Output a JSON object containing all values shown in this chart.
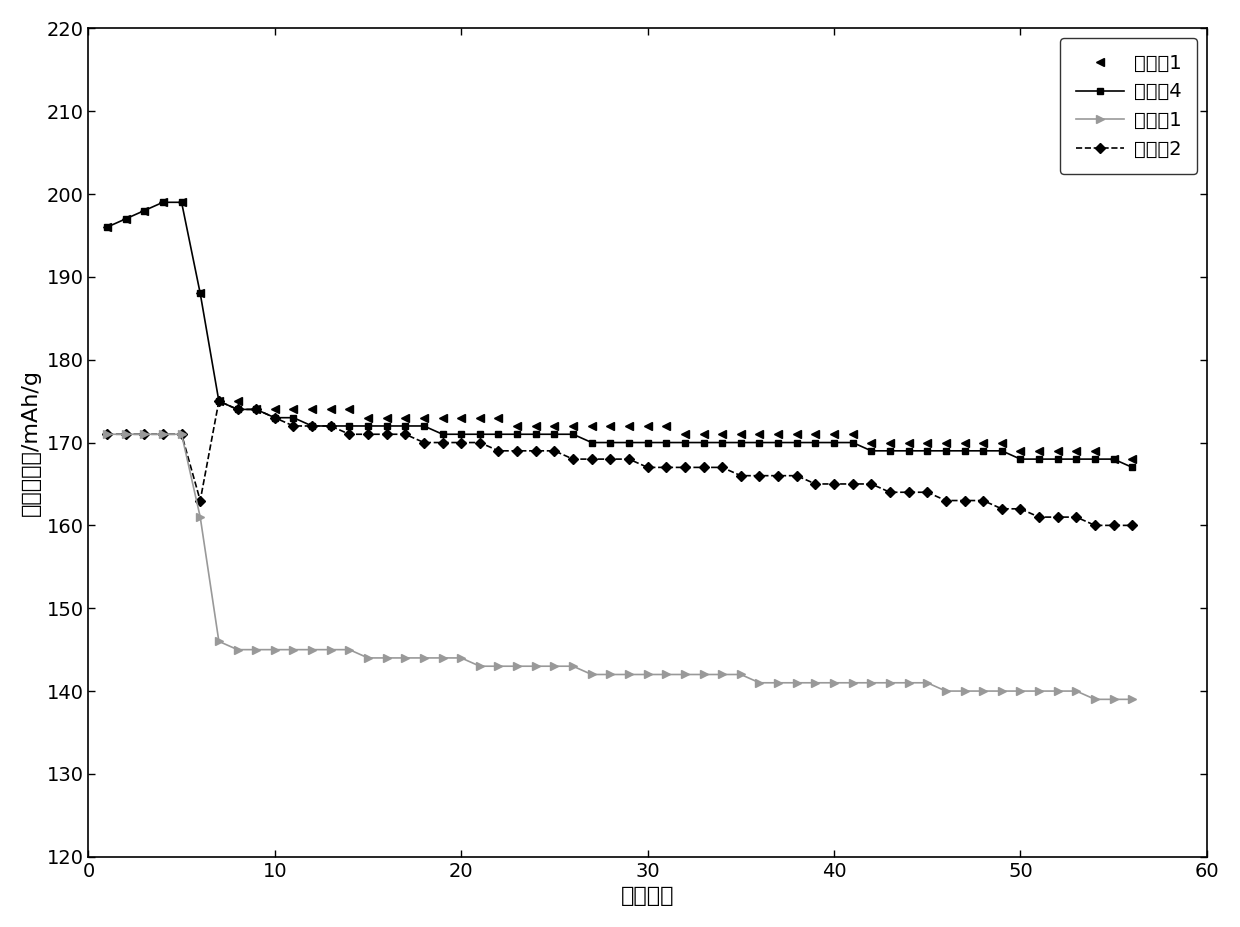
{
  "xlabel": "循环次数",
  "ylabel": "放电比容量/mAh/g",
  "xlim": [
    0,
    60
  ],
  "ylim": [
    120,
    220
  ],
  "yticks": [
    120,
    130,
    140,
    150,
    160,
    170,
    180,
    190,
    200,
    210,
    220
  ],
  "xticks": [
    0,
    10,
    20,
    30,
    40,
    50,
    60
  ],
  "series": {
    "shishi1": {
      "label": "实施例1",
      "color": "#000000",
      "linestyle": "none",
      "marker": "<",
      "markersize": 6,
      "x": [
        1,
        2,
        3,
        4,
        5,
        6,
        7,
        8,
        9,
        10,
        11,
        12,
        13,
        14,
        15,
        16,
        17,
        18,
        19,
        20,
        21,
        22,
        23,
        24,
        25,
        26,
        27,
        28,
        29,
        30,
        31,
        32,
        33,
        34,
        35,
        36,
        37,
        38,
        39,
        40,
        41,
        42,
        43,
        44,
        45,
        46,
        47,
        48,
        49,
        50,
        51,
        52,
        53,
        54,
        55,
        56
      ],
      "y": [
        196,
        197,
        198,
        199,
        199,
        188,
        175,
        175,
        174,
        174,
        174,
        174,
        174,
        174,
        173,
        173,
        173,
        173,
        173,
        173,
        173,
        173,
        172,
        172,
        172,
        172,
        172,
        172,
        172,
        172,
        172,
        171,
        171,
        171,
        171,
        171,
        171,
        171,
        171,
        171,
        171,
        170,
        170,
        170,
        170,
        170,
        170,
        170,
        170,
        169,
        169,
        169,
        169,
        169,
        168,
        168
      ]
    },
    "shishi4": {
      "label": "实施例4",
      "color": "#000000",
      "linestyle": "-",
      "marker": "s",
      "markersize": 5,
      "x": [
        1,
        2,
        3,
        4,
        5,
        6,
        7,
        8,
        9,
        10,
        11,
        12,
        13,
        14,
        15,
        16,
        17,
        18,
        19,
        20,
        21,
        22,
        23,
        24,
        25,
        26,
        27,
        28,
        29,
        30,
        31,
        32,
        33,
        34,
        35,
        36,
        37,
        38,
        39,
        40,
        41,
        42,
        43,
        44,
        45,
        46,
        47,
        48,
        49,
        50,
        51,
        52,
        53,
        54,
        55,
        56
      ],
      "y": [
        196,
        197,
        198,
        199,
        199,
        188,
        175,
        174,
        174,
        173,
        173,
        172,
        172,
        172,
        172,
        172,
        172,
        172,
        171,
        171,
        171,
        171,
        171,
        171,
        171,
        171,
        170,
        170,
        170,
        170,
        170,
        170,
        170,
        170,
        170,
        170,
        170,
        170,
        170,
        170,
        170,
        169,
        169,
        169,
        169,
        169,
        169,
        169,
        169,
        168,
        168,
        168,
        168,
        168,
        168,
        167
      ]
    },
    "duibi1": {
      "label": "对比例1",
      "color": "#999999",
      "linestyle": "-",
      "marker": ">",
      "markersize": 6,
      "x": [
        1,
        2,
        3,
        4,
        5,
        6,
        7,
        8,
        9,
        10,
        11,
        12,
        13,
        14,
        15,
        16,
        17,
        18,
        19,
        20,
        21,
        22,
        23,
        24,
        25,
        26,
        27,
        28,
        29,
        30,
        31,
        32,
        33,
        34,
        35,
        36,
        37,
        38,
        39,
        40,
        41,
        42,
        43,
        44,
        45,
        46,
        47,
        48,
        49,
        50,
        51,
        52,
        53,
        54,
        55,
        56
      ],
      "y": [
        171,
        171,
        171,
        171,
        171,
        161,
        146,
        145,
        145,
        145,
        145,
        145,
        145,
        145,
        144,
        144,
        144,
        144,
        144,
        144,
        143,
        143,
        143,
        143,
        143,
        143,
        142,
        142,
        142,
        142,
        142,
        142,
        142,
        142,
        142,
        141,
        141,
        141,
        141,
        141,
        141,
        141,
        141,
        141,
        141,
        140,
        140,
        140,
        140,
        140,
        140,
        140,
        140,
        139,
        139,
        139
      ]
    },
    "duibi2": {
      "label": "对比例2",
      "color": "#000000",
      "linestyle": "--",
      "marker": "D",
      "markersize": 5,
      "x": [
        1,
        2,
        3,
        4,
        5,
        6,
        7,
        8,
        9,
        10,
        11,
        12,
        13,
        14,
        15,
        16,
        17,
        18,
        19,
        20,
        21,
        22,
        23,
        24,
        25,
        26,
        27,
        28,
        29,
        30,
        31,
        32,
        33,
        34,
        35,
        36,
        37,
        38,
        39,
        40,
        41,
        42,
        43,
        44,
        45,
        46,
        47,
        48,
        49,
        50,
        51,
        52,
        53,
        54,
        55,
        56
      ],
      "y": [
        171,
        171,
        171,
        171,
        171,
        163,
        175,
        174,
        174,
        173,
        172,
        172,
        172,
        171,
        171,
        171,
        171,
        170,
        170,
        170,
        170,
        169,
        169,
        169,
        169,
        168,
        168,
        168,
        168,
        167,
        167,
        167,
        167,
        167,
        166,
        166,
        166,
        166,
        165,
        165,
        165,
        165,
        164,
        164,
        164,
        163,
        163,
        163,
        162,
        162,
        161,
        161,
        161,
        160,
        160,
        160
      ]
    }
  },
  "background_color": "#ffffff",
  "font_size": 14,
  "label_font_size": 16,
  "linewidth": 1.2
}
